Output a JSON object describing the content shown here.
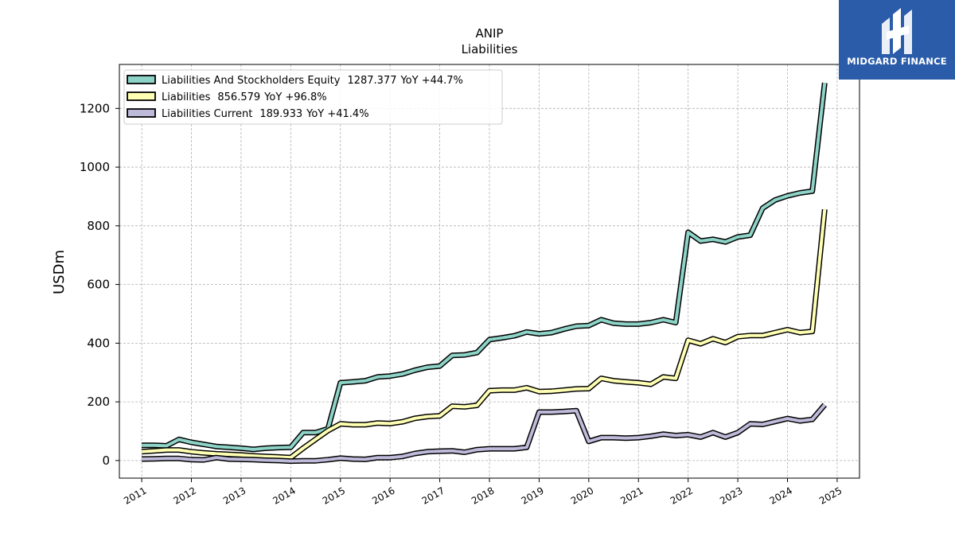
{
  "brand": {
    "name": "MIDGARD FINANCE",
    "logo_icon": "midgard-logo-icon",
    "color": "#2a5caa"
  },
  "chart_data": {
    "type": "line",
    "title": "ANIP",
    "subtitle": "Liabilities",
    "ylabel": "USDm",
    "xlabel": "",
    "xlim": [
      2010.55,
      2025.45
    ],
    "ylim": [
      -60,
      1350
    ],
    "x_ticks": [
      "2011",
      "2012",
      "2013",
      "2014",
      "2015",
      "2016",
      "2017",
      "2018",
      "2019",
      "2020",
      "2021",
      "2022",
      "2023",
      "2024",
      "2025"
    ],
    "y_ticks": [
      "0",
      "200",
      "400",
      "600",
      "800",
      "1000",
      "1200"
    ],
    "grid": true,
    "legend_position": "top-left",
    "x": [
      2011.0,
      2011.25,
      2011.5,
      2011.75,
      2012.0,
      2012.25,
      2012.5,
      2012.75,
      2013.0,
      2013.25,
      2013.5,
      2013.75,
      2014.0,
      2014.25,
      2014.5,
      2014.75,
      2015.0,
      2015.25,
      2015.5,
      2015.75,
      2016.0,
      2016.25,
      2016.5,
      2016.75,
      2017.0,
      2017.25,
      2017.5,
      2017.75,
      2018.0,
      2018.25,
      2018.5,
      2018.75,
      2019.0,
      2019.25,
      2019.5,
      2019.75,
      2020.0,
      2020.25,
      2020.5,
      2020.75,
      2021.0,
      2021.25,
      2021.5,
      2021.75,
      2022.0,
      2022.25,
      2022.5,
      2022.75,
      2023.0,
      2023.25,
      2023.5,
      2023.75,
      2024.0,
      2024.25,
      2024.5,
      2024.75
    ],
    "series": [
      {
        "name": "Liabilities And Stockholders Equity",
        "latest": "1287.377",
        "yoy": "YoY +44.7%",
        "color": "#8dd3c7",
        "values": [
          52,
          52,
          50,
          72,
          62,
          55,
          48,
          45,
          42,
          38,
          42,
          44,
          45,
          95,
          95,
          108,
          265,
          268,
          272,
          285,
          288,
          295,
          308,
          318,
          322,
          358,
          360,
          368,
          412,
          418,
          425,
          438,
          432,
          436,
          448,
          458,
          460,
          480,
          468,
          465,
          465,
          470,
          480,
          470,
          778,
          748,
          754,
          745,
          762,
          768,
          860,
          888,
          902,
          912,
          918,
          1287
        ]
      },
      {
        "name": "Liabilities",
        "latest": "856.579",
        "yoy": "YoY +96.8%",
        "color": "#ffffb3",
        "values": [
          30,
          33,
          36,
          36,
          30,
          26,
          23,
          21,
          19,
          16,
          14,
          12,
          10,
          42,
          72,
          102,
          125,
          122,
          122,
          128,
          126,
          132,
          144,
          150,
          152,
          185,
          183,
          188,
          238,
          240,
          240,
          248,
          235,
          236,
          240,
          244,
          245,
          280,
          272,
          268,
          265,
          260,
          285,
          280,
          410,
          398,
          415,
          402,
          422,
          426,
          426,
          436,
          446,
          436,
          440,
          856
        ]
      },
      {
        "name": "Liabilities Current",
        "latest": "189.933",
        "yoy": "YoY +41.4%",
        "color": "#bebada",
        "values": [
          5,
          6,
          7,
          7,
          3,
          2,
          10,
          5,
          4,
          3,
          1,
          0,
          -2,
          -1,
          -1,
          3,
          8,
          5,
          4,
          10,
          10,
          14,
          24,
          30,
          32,
          33,
          28,
          37,
          40,
          40,
          40,
          45,
          165,
          165,
          167,
          170,
          65,
          78,
          78,
          76,
          78,
          83,
          90,
          85,
          88,
          80,
          95,
          80,
          95,
          125,
          123,
          133,
          143,
          135,
          140,
          190
        ]
      }
    ]
  }
}
